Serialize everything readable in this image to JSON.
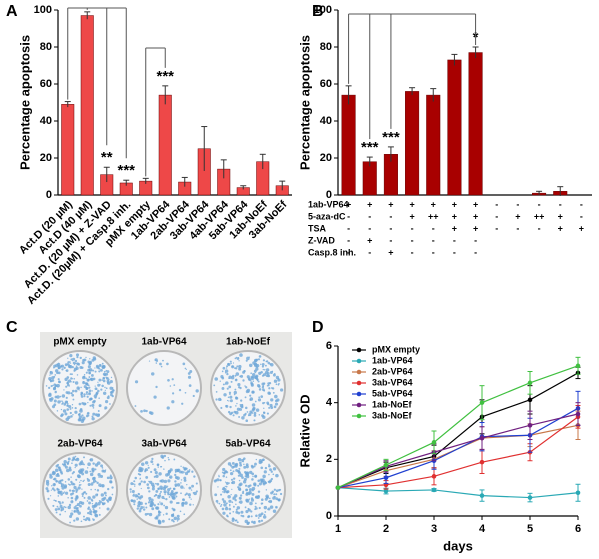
{
  "chart_data": [
    {
      "type": "bar",
      "label": "A",
      "ylabel": "Percentage apoptosis",
      "categories": [
        "Act.D (20 µM)",
        "Act.D (40 µM)",
        "Act.D. (20 µM) + Z-VAD",
        "Act.D. (20µM) + Casp.8 inh.",
        "pMX empty",
        "1ab-VP64",
        "2ab-VP64",
        "3ab-VP64",
        "4ab-VP64",
        "5ab-VP64",
        "1ab-NoEf",
        "3ab-NoEf"
      ],
      "values": [
        49,
        97,
        11,
        6.5,
        7.5,
        54,
        7,
        25,
        14,
        4,
        18,
        5
      ],
      "errors": [
        1.5,
        2,
        4,
        1.5,
        1.5,
        5,
        2.5,
        12,
        5,
        1,
        4,
        2.5
      ],
      "color": "#ee4848",
      "ylim": [
        0,
        100
      ],
      "yticks": [
        0,
        20,
        40,
        60,
        80,
        100
      ],
      "annotations": [
        {
          "text": "**",
          "category": 2
        },
        {
          "text": "***",
          "category": 3
        },
        {
          "text": "***",
          "category": 5
        }
      ]
    },
    {
      "type": "bar",
      "label": "B",
      "ylabel": "Percentage apoptosis",
      "categories": [
        null,
        null,
        null,
        null,
        null,
        null,
        null,
        null,
        null,
        null,
        null,
        null
      ],
      "values": [
        54,
        18,
        22,
        56,
        54,
        73,
        77,
        0,
        0,
        1,
        2,
        0
      ],
      "errors": [
        5,
        2.5,
        4,
        2,
        3.5,
        3,
        3,
        0,
        0,
        1,
        2.5,
        0
      ],
      "color": "#a80000",
      "ylim": [
        0,
        100
      ],
      "yticks": [
        0,
        20,
        40,
        60,
        80,
        100
      ],
      "annotations": [
        {
          "text": "***",
          "category": 1
        },
        {
          "text": "***",
          "category": 2
        },
        {
          "text": "*",
          "category": 6
        }
      ],
      "treatments": [
        {
          "label": "1ab-VP64",
          "cells": [
            "+",
            "+",
            "+",
            "+",
            "+",
            "+",
            "+",
            "-",
            "-",
            "-",
            "-",
            "-"
          ]
        },
        {
          "label": "5-aza-dC",
          "cells": [
            "-",
            "-",
            "-",
            "+",
            "++",
            "+",
            "+",
            "-",
            "+",
            "++",
            "+",
            "-"
          ]
        },
        {
          "label": "TSA",
          "cells": [
            "-",
            "-",
            "-",
            "-",
            "-",
            "+",
            "+",
            "-",
            "-",
            "-",
            "+",
            "+"
          ]
        },
        {
          "label": "Z-VAD",
          "cells": [
            "-",
            "+",
            "-",
            "-",
            "-",
            "-",
            "-"
          ]
        },
        {
          "label": "Casp.8 inh.",
          "cells": [
            "-",
            "-",
            "+",
            "-",
            "-",
            "-",
            "-"
          ]
        }
      ]
    },
    {
      "type": "line",
      "label": "D",
      "xlabel": "days",
      "ylabel": "Relative OD",
      "x": [
        1,
        2,
        3,
        4,
        5,
        6
      ],
      "xlim": [
        1,
        6
      ],
      "xticks": [
        1,
        2,
        3,
        4,
        5,
        6
      ],
      "ylim": [
        0,
        6
      ],
      "yticks": [
        0,
        2,
        4,
        6
      ],
      "legend": "upper left",
      "series": [
        {
          "name": "pMX empty",
          "color": "#000000",
          "values": [
            1,
            1.7,
            2.1,
            3.5,
            4.1,
            5.05
          ],
          "errors": [
            0,
            0.2,
            0.4,
            0.6,
            0.5,
            0.2
          ]
        },
        {
          "name": "1ab-VP64",
          "color": "#2aa9b5",
          "values": [
            1,
            0.88,
            0.92,
            0.72,
            0.65,
            0.82
          ],
          "errors": [
            0,
            0.1,
            0.05,
            0.2,
            0.15,
            0.3
          ]
        },
        {
          "name": "2ab-VP64",
          "color": "#c8784a",
          "values": [
            1,
            1.6,
            2.0,
            2.75,
            2.85,
            3.2
          ],
          "errors": [
            0,
            0.2,
            0.3,
            0.4,
            0.4,
            0.5
          ]
        },
        {
          "name": "3ab-VP64",
          "color": "#e03030",
          "values": [
            1,
            1.1,
            1.4,
            1.9,
            2.25,
            3.5
          ],
          "errors": [
            0,
            0.15,
            0.3,
            0.4,
            0.3,
            0.4
          ]
        },
        {
          "name": "5ab-VP64",
          "color": "#2040d0",
          "values": [
            1,
            1.35,
            1.95,
            2.8,
            2.85,
            3.8
          ],
          "errors": [
            0,
            0.2,
            0.3,
            0.5,
            0.6,
            0.6
          ]
        },
        {
          "name": "1ab-NoEf",
          "color": "#702080",
          "values": [
            1,
            1.75,
            2.25,
            2.75,
            3.2,
            3.6
          ],
          "errors": [
            0,
            0.2,
            0.3,
            0.4,
            0.5,
            0.4
          ]
        },
        {
          "name": "3ab-NoEf",
          "color": "#40c040",
          "values": [
            1,
            1.8,
            2.6,
            4.0,
            4.7,
            5.3
          ],
          "errors": [
            0,
            0.2,
            0.4,
            0.6,
            0.4,
            0.3
          ]
        }
      ]
    }
  ],
  "image_panel": {
    "label": "C",
    "dishes": [
      "pMX empty",
      "1ab-VP64",
      "1ab-NoEf",
      "2ab-VP64",
      "3ab-VP64",
      "5ab-VP64"
    ]
  }
}
